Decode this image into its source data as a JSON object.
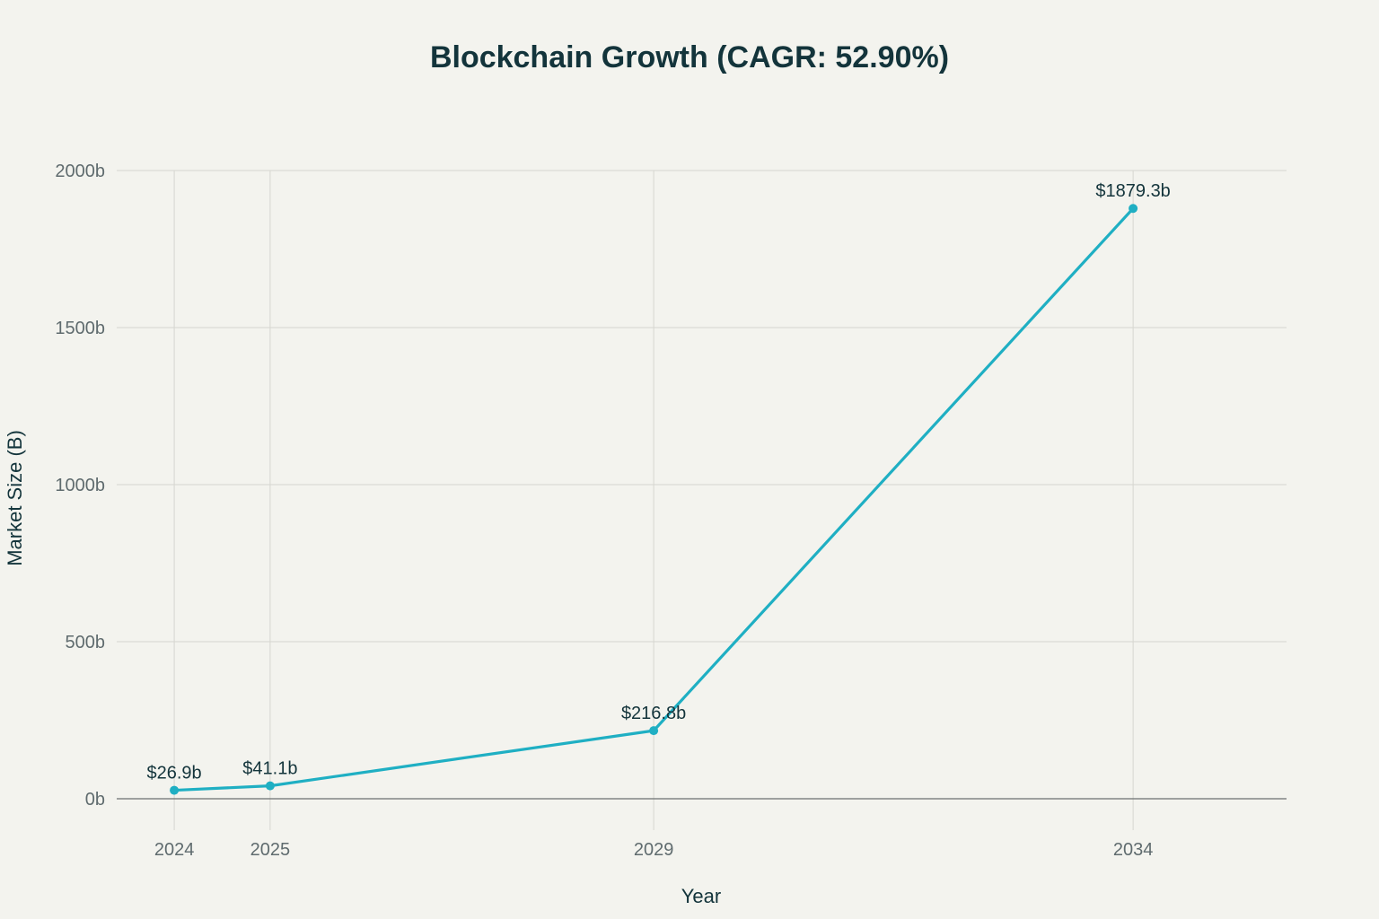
{
  "chart_data": {
    "type": "line",
    "title": "Blockchain Growth (CAGR: 52.90%)",
    "xlabel": "Year",
    "ylabel": "Market Size (B)",
    "x": [
      2024,
      2025,
      2029,
      2034
    ],
    "x_tick_labels": [
      "2024",
      "2025",
      "2029",
      "2034"
    ],
    "series": [
      {
        "name": "Market Size",
        "values": [
          26.9,
          41.1,
          216.8,
          1879.3
        ],
        "labels": [
          "$26.9b",
          "$41.1b",
          "$216.8b",
          "$1879.3b"
        ],
        "color": "#1fafc3"
      }
    ],
    "y_ticks": [
      0,
      500,
      1000,
      1500,
      2000
    ],
    "y_tick_labels": [
      "0b",
      "500b",
      "1000b",
      "1500b",
      "2000b"
    ],
    "xlim": [
      2023.4,
      2035.6
    ],
    "ylim": [
      -100,
      2000
    ],
    "grid": true,
    "legend": "none"
  }
}
